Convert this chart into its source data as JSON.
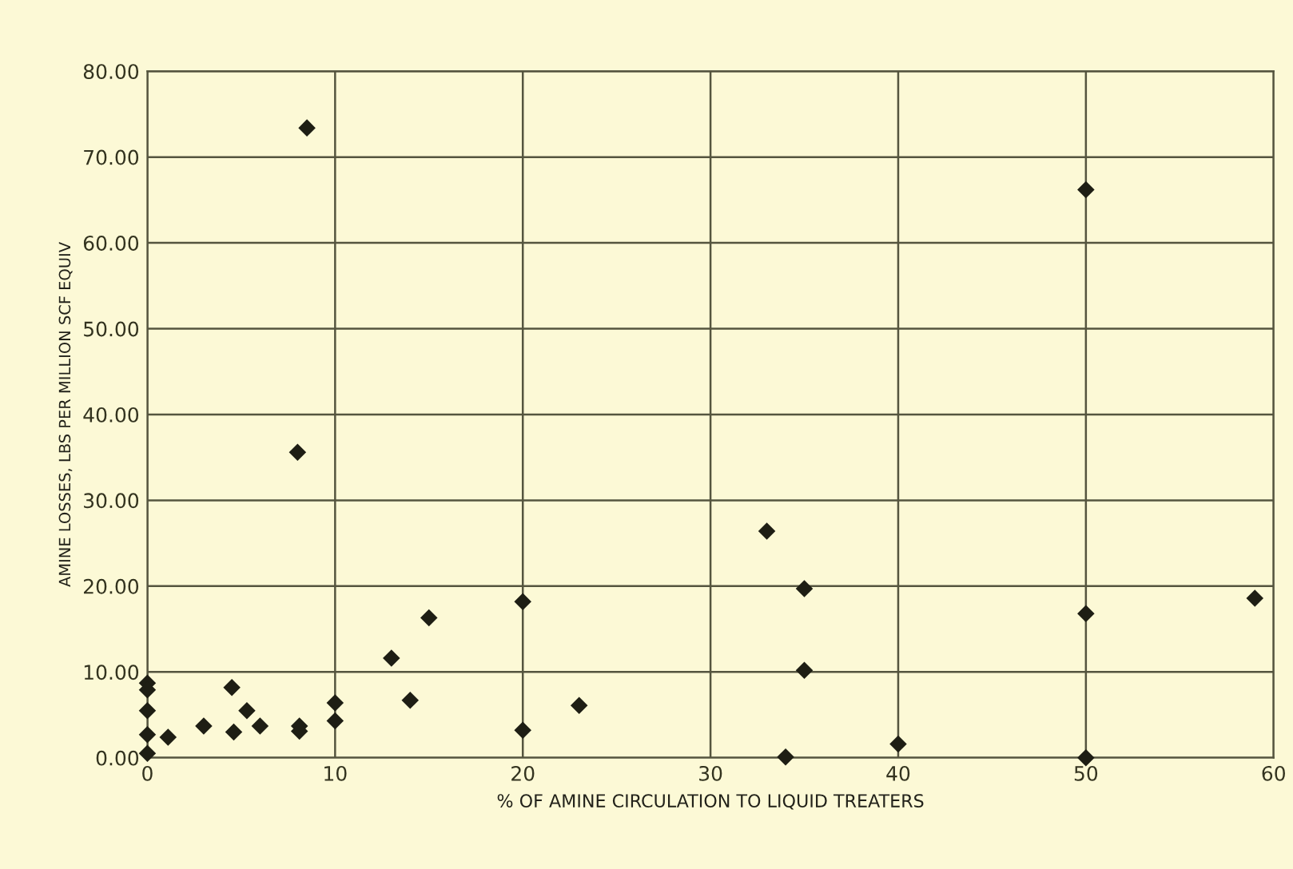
{
  "chart_data": {
    "type": "scatter",
    "xlabel": "% OF AMINE CIRCULATION TO LIQUID TREATERS",
    "ylabel": "AMINE LOSSES, LBS PER MILLION SCF EQUIV",
    "series": [
      {
        "color": "#1e1e14",
        "x": [
          0,
          0,
          0,
          0,
          0,
          1.1,
          3,
          4.5,
          4.6,
          5.3,
          6,
          8.1,
          8.1,
          8.5,
          8,
          10,
          10,
          13,
          14,
          15,
          20,
          20,
          23,
          33,
          34,
          35,
          35,
          40,
          50,
          50,
          50,
          59
        ],
        "values": [
          8.7,
          7.9,
          5.5,
          2.7,
          0.5,
          2.4,
          3.7,
          8.2,
          3.0,
          5.5,
          3.7,
          3.7,
          3.1,
          73.4,
          35.6,
          6.4,
          4.3,
          11.6,
          6.7,
          16.3,
          18.2,
          3.2,
          6.1,
          26.4,
          0.1,
          19.7,
          10.2,
          1.6,
          66.2,
          16.8,
          0,
          18.6
        ]
      }
    ],
    "marker": "diamond",
    "xlim": [
      0,
      60
    ],
    "xticks": [
      0,
      10,
      20,
      30,
      40,
      50,
      60
    ],
    "ylim": [
      0,
      80
    ],
    "yticks": [
      {
        "value": 0,
        "label": "0.00"
      },
      {
        "value": 10,
        "label": "10.00"
      },
      {
        "value": 20,
        "label": "20.00"
      },
      {
        "value": 30,
        "label": "30.00"
      },
      {
        "value": 40,
        "label": "40.00"
      },
      {
        "value": 50,
        "label": "50.00"
      },
      {
        "value": 60,
        "label": "60.00"
      },
      {
        "value": 70,
        "label": "70.00"
      },
      {
        "value": 80,
        "label": "80.00"
      }
    ],
    "grid": true
  }
}
